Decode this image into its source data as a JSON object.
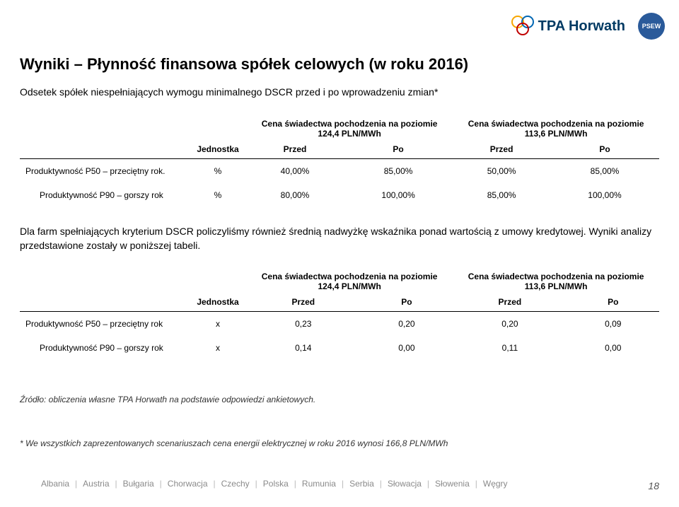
{
  "logo": {
    "brand": "TPA Horwath",
    "psew": "PSEW"
  },
  "title": "Wyniki – Płynność finansowa spółek celowych (w roku 2016)",
  "subtitle": "Odsetek spółek niespełniających wymogu minimalnego DSCR przed i po wprowadzeniu zmian*",
  "colgroups": {
    "left": "Cena świadectwa pochodzenia na poziomie 124,4 PLN/MWh",
    "right": "Cena świadectwa pochodzenia na poziomie 113,6 PLN/MWh"
  },
  "labels": {
    "unit": "Jednostka",
    "przed": "Przed",
    "po": "Po"
  },
  "table1": {
    "rows": [
      {
        "label": "Produktywność P50 – przeciętny rok.",
        "unit": "%",
        "v": [
          "40,00%",
          "85,00%",
          "50,00%",
          "85,00%"
        ]
      },
      {
        "label": "Produktywność P90 – gorszy rok",
        "unit": "%",
        "v": [
          "80,00%",
          "100,00%",
          "85,00%",
          "100,00%"
        ],
        "indent": true
      }
    ]
  },
  "paragraph": "Dla farm spełniających kryterium DSCR policzyliśmy również średnią nadwyżkę wskaźnika ponad wartością z umowy kredytowej. Wyniki analizy przedstawione zostały w poniższej tabeli.",
  "table2": {
    "rows": [
      {
        "label": "Produktywność P50 – przeciętny rok",
        "unit": "x",
        "v": [
          "0,23",
          "0,20",
          "0,20",
          "0,09"
        ]
      },
      {
        "label": "Produktywność P90 – gorszy rok",
        "unit": "x",
        "v": [
          "0,14",
          "0,00",
          "0,11",
          "0,00"
        ],
        "indent": true
      }
    ]
  },
  "source": "Źródło: obliczenia własne TPA Horwath na podstawie odpowiedzi ankietowych.",
  "footnote": "* We wszystkich zaprezentowanych scenariuszach cena energii elektrycznej w roku 2016 wynosi 166,8 PLN/MWh",
  "footer": {
    "countries": [
      "Albania",
      "Austria",
      "Bułgaria",
      "Chorwacja",
      "Czechy",
      "Polska",
      "Rumunia",
      "Serbia",
      "Słowacja",
      "Słowenia",
      "Węgry"
    ]
  },
  "page": "18",
  "colors": {
    "ring1": "#f7a600",
    "ring2": "#0066b3",
    "ring3": "#c00000",
    "brand_text": "#003a63",
    "psew_bg": "#2a5a9a"
  }
}
